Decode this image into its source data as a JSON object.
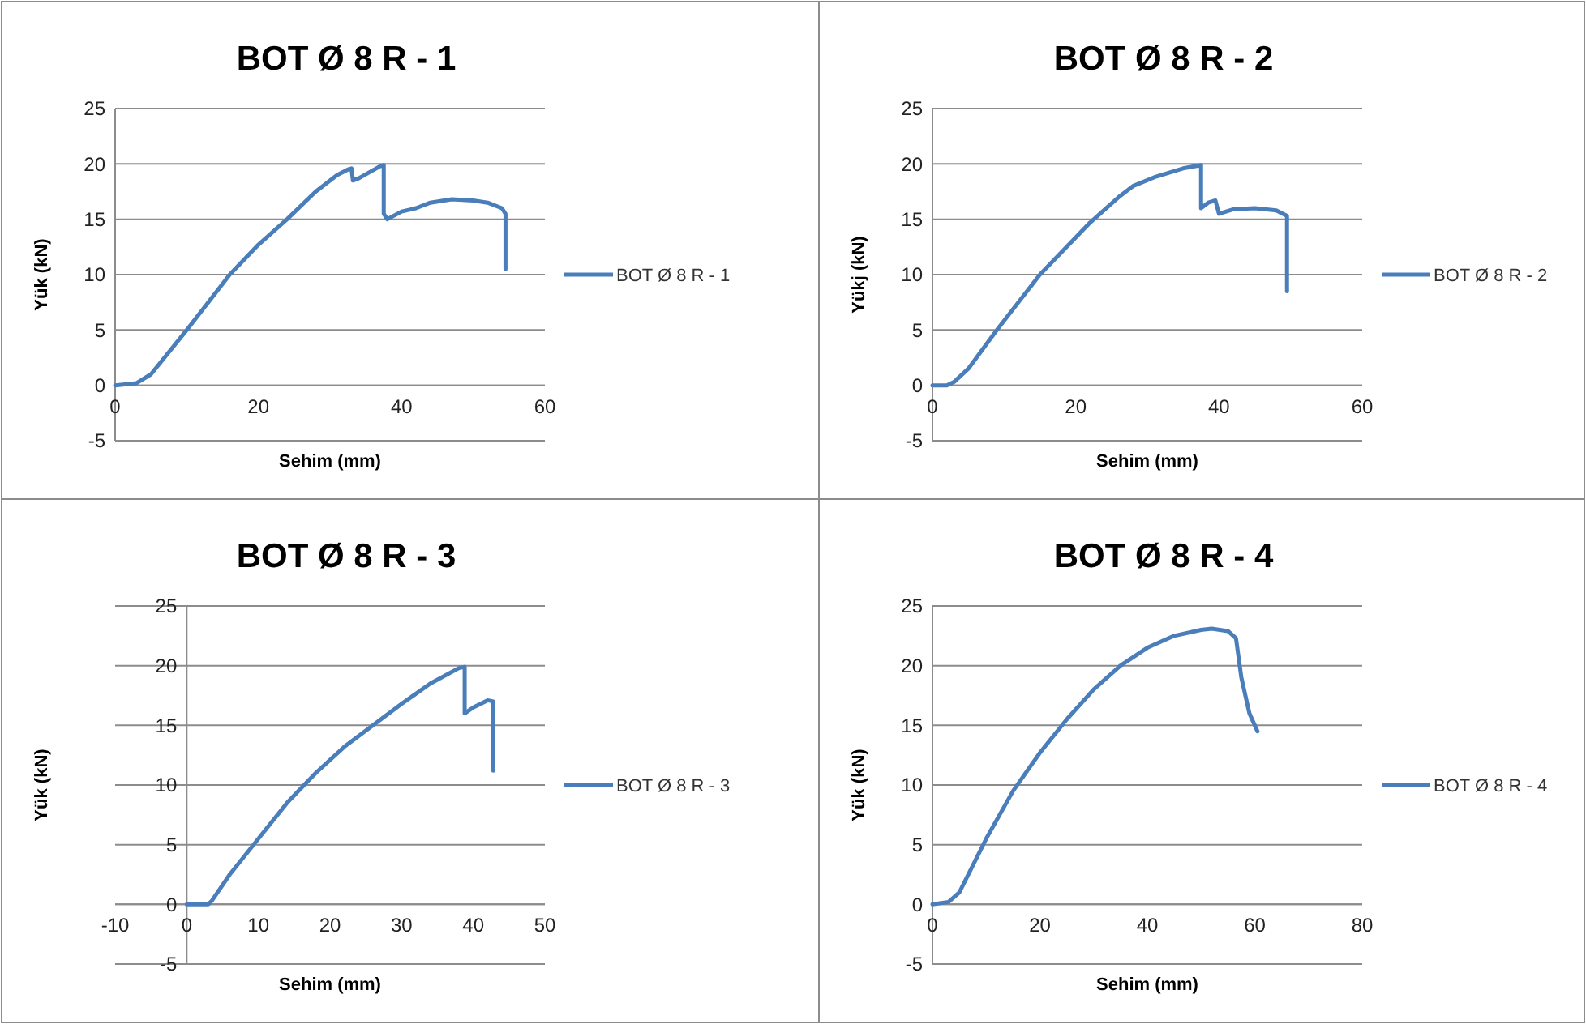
{
  "chart_data": [
    {
      "type": "line",
      "title": "BOT Ø 8 R - 1",
      "xlabel": "Sehim (mm)",
      "ylabel": "Yük (kN)",
      "xlim": [
        0,
        60
      ],
      "xticks": [
        0,
        20,
        40,
        60
      ],
      "ylim": [
        -5,
        25
      ],
      "yticks": [
        -5,
        0,
        5,
        10,
        15,
        20,
        25
      ],
      "grid": "y",
      "legend": "right",
      "series": [
        {
          "name": "BOT Ø 8 R - 1",
          "color": "#4a7ebb",
          "x": [
            0,
            3,
            5,
            10,
            16,
            20,
            24,
            28,
            31,
            32.5,
            33,
            33.2,
            34,
            37,
            37.5,
            37.5,
            38,
            40,
            42,
            44,
            47,
            50,
            52,
            54,
            54.5,
            54.5
          ],
          "values": [
            0,
            0.2,
            1,
            5,
            10,
            12.7,
            15,
            17.5,
            19,
            19.5,
            19.6,
            18.5,
            18.7,
            19.8,
            19.9,
            15.5,
            15,
            15.7,
            16,
            16.5,
            16.8,
            16.7,
            16.5,
            16,
            15.5,
            10.5
          ]
        }
      ]
    },
    {
      "type": "line",
      "title": "BOT Ø 8 R - 2",
      "xlabel": "Sehim (mm)",
      "ylabel": "Yükj (kN)",
      "xlim": [
        0,
        60
      ],
      "xticks": [
        0,
        20,
        40,
        60
      ],
      "ylim": [
        -5,
        25
      ],
      "yticks": [
        -5,
        0,
        5,
        10,
        15,
        20,
        25
      ],
      "grid": "y",
      "legend": "right",
      "series": [
        {
          "name": "BOT Ø 8 R - 2",
          "color": "#4a7ebb",
          "x": [
            0,
            2,
            3,
            5,
            9,
            15,
            22,
            26,
            28,
            31,
            35,
            37.5,
            37.5,
            38.5,
            39.5,
            40,
            42,
            45,
            48,
            49.5,
            49.5
          ],
          "values": [
            0,
            0,
            0.3,
            1.5,
            5,
            10,
            14.7,
            17,
            18,
            18.8,
            19.6,
            19.9,
            16,
            16.5,
            16.7,
            15.5,
            15.9,
            16,
            15.8,
            15.3,
            8.5
          ]
        }
      ]
    },
    {
      "type": "line",
      "title": "BOT Ø 8 R - 3",
      "xlabel": "Sehim (mm)",
      "ylabel": "Yük (kN)",
      "xlim": [
        -10,
        50
      ],
      "xticks": [
        -10,
        0,
        10,
        20,
        30,
        40,
        50
      ],
      "ylim": [
        -5,
        25
      ],
      "yticks": [
        -5,
        0,
        5,
        10,
        15,
        20,
        25
      ],
      "grid": "y",
      "legend": "right",
      "series": [
        {
          "name": "BOT Ø 8 R - 3",
          "color": "#4a7ebb",
          "x": [
            0,
            3,
            3.5,
            6,
            10,
            14,
            18,
            22,
            26,
            30,
            34,
            38,
            38.8,
            38.8,
            40,
            42,
            42.8,
            42.8
          ],
          "values": [
            0,
            0,
            0.3,
            2.5,
            5.5,
            8.5,
            11,
            13.2,
            15,
            16.8,
            18.5,
            19.8,
            19.9,
            16,
            16.5,
            17.1,
            17,
            11.2
          ]
        }
      ]
    },
    {
      "type": "line",
      "title": "BOT Ø 8 R - 4",
      "xlabel": "Sehim (mm)",
      "ylabel": "Yük (kN)",
      "xlim": [
        0,
        80
      ],
      "xticks": [
        0,
        20,
        40,
        60,
        80
      ],
      "ylim": [
        -5,
        25
      ],
      "yticks": [
        -5,
        0,
        5,
        10,
        15,
        20,
        25
      ],
      "grid": "y",
      "legend": "right",
      "series": [
        {
          "name": "BOT Ø 8 R - 4",
          "color": "#4a7ebb",
          "x": [
            0,
            3,
            5,
            10,
            15,
            20,
            25,
            30,
            35,
            40,
            45,
            50,
            52,
            55,
            56.5,
            57.5,
            59,
            60.5
          ],
          "values": [
            0,
            0.2,
            1,
            5.5,
            9.5,
            12.7,
            15.5,
            18,
            20,
            21.5,
            22.5,
            23,
            23.1,
            22.9,
            22.3,
            19,
            16,
            14.5
          ]
        }
      ]
    }
  ]
}
